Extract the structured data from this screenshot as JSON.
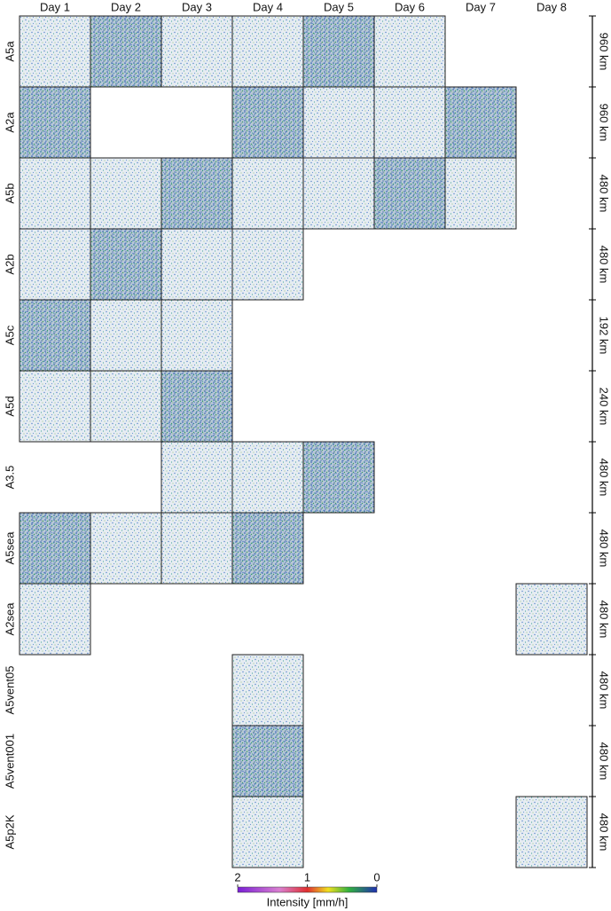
{
  "columns": [
    "Day 1",
    "Day 2",
    "Day 3",
    "Day 4",
    "Day 5",
    "Day 6",
    "Day 7",
    "Day 8"
  ],
  "rows": [
    {
      "name": "A5a",
      "scale": "960 km",
      "panels": [
        true,
        true,
        true,
        true,
        true,
        true,
        false,
        false
      ]
    },
    {
      "name": "A2a",
      "scale": "960 km",
      "panels": [
        true,
        false,
        false,
        true,
        true,
        true,
        true,
        false
      ]
    },
    {
      "name": "A5b",
      "scale": "480 km",
      "panels": [
        true,
        true,
        true,
        true,
        true,
        true,
        true,
        false
      ]
    },
    {
      "name": "A2b",
      "scale": "480 km",
      "panels": [
        true,
        true,
        true,
        true,
        false,
        false,
        false,
        false
      ]
    },
    {
      "name": "A5c",
      "scale": "192 km",
      "panels": [
        true,
        true,
        true,
        false,
        false,
        false,
        false,
        false
      ]
    },
    {
      "name": "A5d",
      "scale": "240 km",
      "panels": [
        true,
        true,
        true,
        false,
        false,
        false,
        false,
        false
      ]
    },
    {
      "name": "A3.5",
      "scale": "480 km",
      "panels": [
        false,
        false,
        true,
        true,
        true,
        false,
        false,
        false
      ]
    },
    {
      "name": "A5sea",
      "scale": "480 km",
      "panels": [
        true,
        true,
        true,
        true,
        false,
        false,
        false,
        false
      ]
    },
    {
      "name": "A2sea",
      "scale": "480 km",
      "panels": [
        true,
        false,
        false,
        false,
        false,
        false,
        false,
        true
      ]
    },
    {
      "name": "A5vent05",
      "scale": "480 km",
      "panels": [
        false,
        false,
        false,
        true,
        false,
        false,
        false,
        false
      ]
    },
    {
      "name": "A5vent001",
      "scale": "480 km",
      "panels": [
        false,
        false,
        false,
        true,
        false,
        false,
        false,
        false
      ]
    },
    {
      "name": "A5p2K",
      "scale": "480 km",
      "panels": [
        false,
        false,
        false,
        true,
        false,
        false,
        false,
        true
      ]
    }
  ],
  "colorbar": {
    "label": "Intensity [mm/h]",
    "lim": [
      2,
      0
    ],
    "ticks": [
      2,
      1,
      0
    ]
  }
}
